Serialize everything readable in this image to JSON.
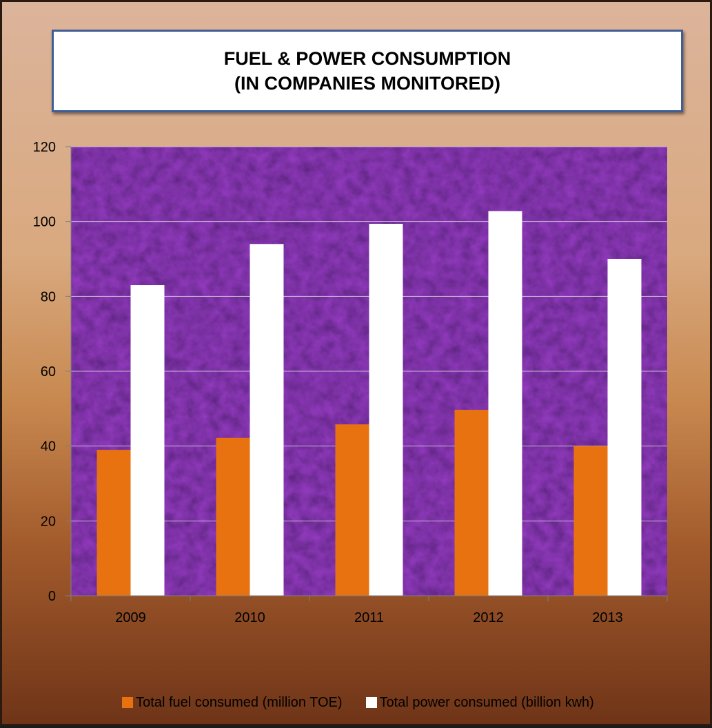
{
  "title": {
    "line1": "FUEL & POWER CONSUMPTION",
    "line2": "(IN COMPANIES MONITORED)"
  },
  "colors": {
    "fuel": "#e8720f",
    "power": "#ffffff",
    "plot_background": "#3b1468",
    "gridline": "#c9b8d8",
    "title_border": "#3d5f96"
  },
  "chart_data": {
    "type": "bar",
    "title": "FUEL & POWER CONSUMPTION (IN COMPANIES MONITORED)",
    "categories": [
      "2009",
      "2010",
      "2011",
      "2012",
      "2013"
    ],
    "series": [
      {
        "name": "Total fuel consumed (million TOE)",
        "values": [
          39,
          42.2,
          45.8,
          49.7,
          40
        ]
      },
      {
        "name": "Total power consumed (billion kwh)",
        "values": [
          83,
          94,
          99.4,
          102.8,
          90
        ]
      }
    ],
    "yticks": [
      "0",
      "20",
      "40",
      "60",
      "80",
      "100",
      "120"
    ],
    "ylim": [
      0,
      120
    ],
    "xlabel": "",
    "ylabel": "",
    "grid": true,
    "legend_position": "bottom"
  }
}
